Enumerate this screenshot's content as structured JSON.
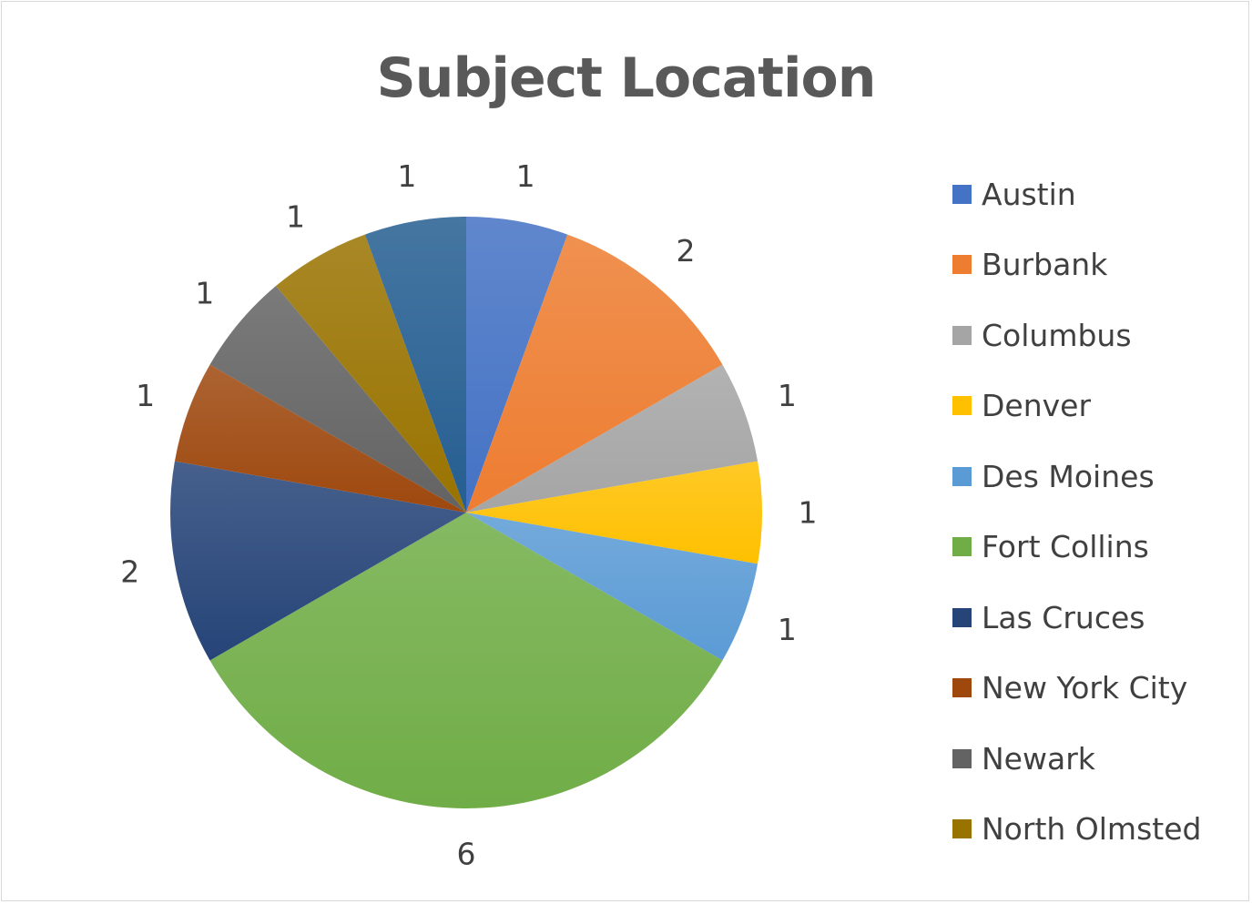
{
  "chart_data": {
    "type": "pie",
    "title": "Subject Location",
    "categories": [
      "Austin",
      "Burbank",
      "Columbus",
      "Denver",
      "Des Moines",
      "Fort Collins",
      "Las Cruces",
      "New York City",
      "Newark",
      "North Olmsted",
      "Unlabeled slice"
    ],
    "values": [
      1,
      2,
      1,
      1,
      1,
      6,
      2,
      1,
      1,
      1,
      1
    ],
    "colors": [
      "#4472c4",
      "#ed7d31",
      "#a5a5a5",
      "#ffc000",
      "#5b9bd5",
      "#70ad47",
      "#264478",
      "#9e480e",
      "#636363",
      "#997300",
      "#255e91"
    ],
    "legend_position": "right",
    "legend_entries": [
      "Austin",
      "Burbank",
      "Columbus",
      "Denver",
      "Des Moines",
      "Fort Collins",
      "Las Cruces",
      "New York City",
      "Newark",
      "North Olmsted"
    ]
  }
}
